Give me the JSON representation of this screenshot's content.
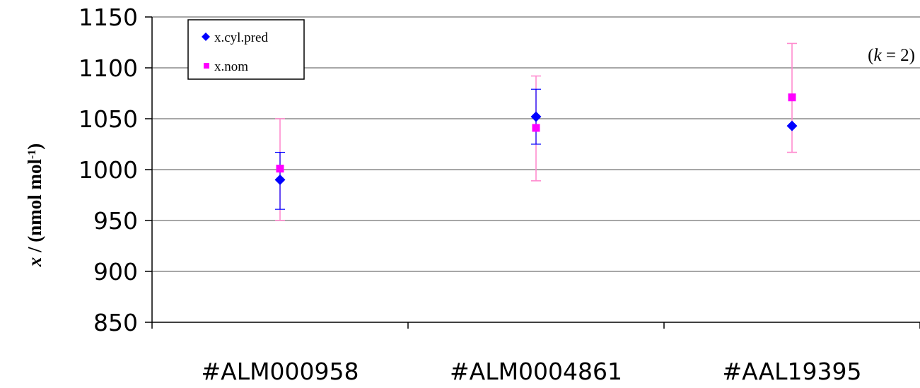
{
  "chart_data": {
    "type": "scatter",
    "categories": [
      "#ALM000958",
      "#ALM0004861",
      "#AAL19395"
    ],
    "series": [
      {
        "name": "x.cyl.pred",
        "marker": "diamond",
        "color": "#0000ff",
        "values": [
          990,
          1052,
          1043
        ],
        "err_lower": [
          961,
          1025,
          null
        ],
        "err_upper": [
          1017,
          1079,
          null
        ]
      },
      {
        "name": "x.nom",
        "marker": "square",
        "color": "#ff00ff",
        "values": [
          1001,
          1041,
          1071
        ],
        "err_lower": [
          950,
          989,
          1017
        ],
        "err_upper": [
          1050,
          1092,
          1124
        ]
      }
    ],
    "yticks": [
      850,
      900,
      950,
      1000,
      1050,
      1100,
      1150
    ],
    "ylim": [
      850,
      1150
    ],
    "ylabel": {
      "var": "x",
      "rest": " / (nmol mol",
      "sup": "-1",
      "close": ")"
    },
    "annotation": {
      "open": "(",
      "k": "k",
      "rest": " = 2)"
    },
    "grid": true,
    "legend_position": "top-left"
  }
}
